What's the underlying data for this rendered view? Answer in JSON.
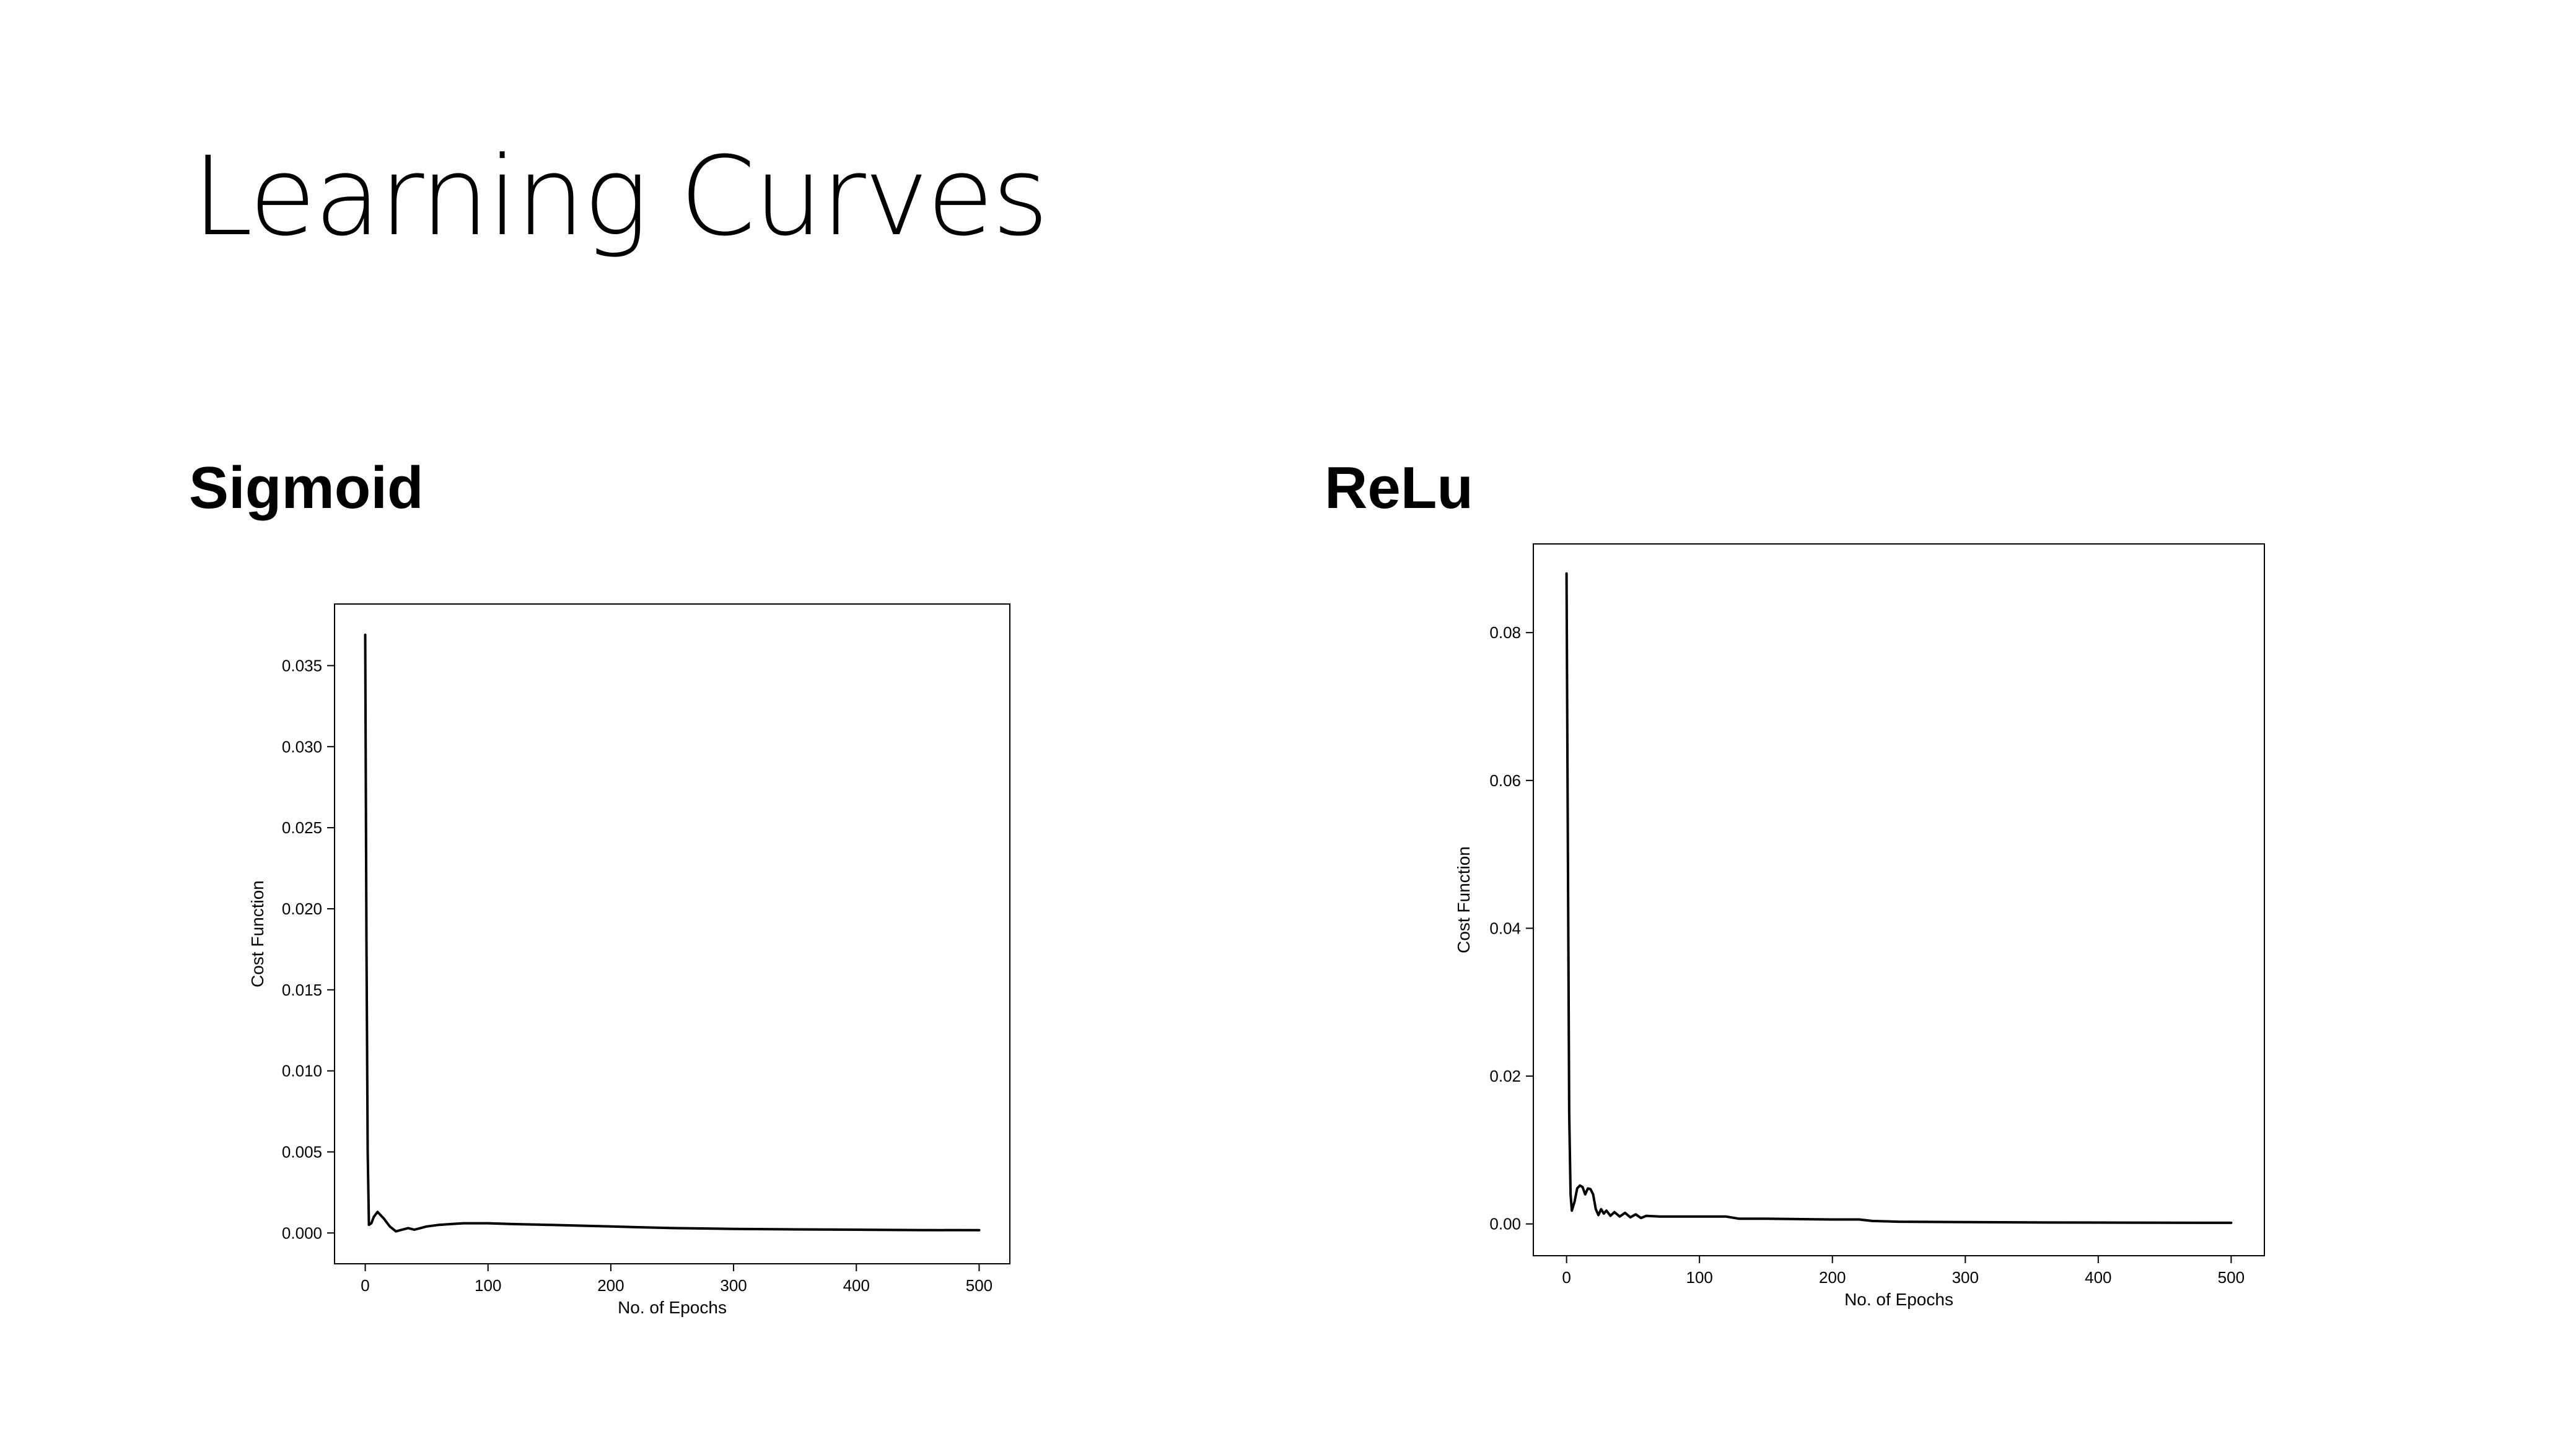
{
  "slide": {
    "title": "Learning Curves"
  },
  "chart_data": [
    {
      "heading": "Sigmoid",
      "type": "line",
      "xlabel": "No. of Epochs",
      "ylabel": "Cost Function",
      "xlim": [
        -25,
        525
      ],
      "ylim": [
        -0.0019,
        0.0388
      ],
      "xticks": [
        0,
        100,
        200,
        300,
        400,
        500
      ],
      "xtick_labels": [
        "0",
        "100",
        "200",
        "300",
        "400",
        "500"
      ],
      "yticks": [
        0.0,
        0.005,
        0.01,
        0.015,
        0.02,
        0.025,
        0.03,
        0.035
      ],
      "ytick_labels": [
        "0.000",
        "0.005",
        "0.010",
        "0.015",
        "0.020",
        "0.025",
        "0.030",
        "0.035"
      ],
      "grid": false,
      "legend": false,
      "series": [
        {
          "color": "#000000",
          "x": [
            0,
            1,
            2,
            3,
            5,
            7,
            10,
            15,
            20,
            25,
            30,
            35,
            40,
            45,
            50,
            60,
            70,
            80,
            90,
            100,
            120,
            150,
            200,
            250,
            300,
            350,
            400,
            450,
            500
          ],
          "y": [
            0.0369,
            0.018,
            0.005,
            0.0005,
            0.0006,
            0.001,
            0.0013,
            0.0009,
            0.0004,
            0.0001,
            0.0002,
            0.0003,
            0.0002,
            0.0003,
            0.0004,
            0.0005,
            0.00055,
            0.0006,
            0.0006,
            0.0006,
            0.00055,
            0.0005,
            0.0004,
            0.0003,
            0.00025,
            0.00022,
            0.0002,
            0.00018,
            0.00017
          ]
        }
      ]
    },
    {
      "heading": "ReLu",
      "type": "line",
      "xlabel": "No. of Epochs",
      "ylabel": "Cost Function",
      "xlim": [
        -25,
        525
      ],
      "ylim": [
        -0.0043,
        0.092
      ],
      "xticks": [
        0,
        100,
        200,
        300,
        400,
        500
      ],
      "xtick_labels": [
        "0",
        "100",
        "200",
        "300",
        "400",
        "500"
      ],
      "yticks": [
        0.0,
        0.02,
        0.04,
        0.06,
        0.08
      ],
      "ytick_labels": [
        "0.00",
        "0.02",
        "0.04",
        "0.06",
        "0.08"
      ],
      "grid": false,
      "legend": false,
      "series": [
        {
          "color": "#000000",
          "x": [
            0,
            1,
            2,
            3,
            4,
            6,
            8,
            10,
            12,
            14,
            16,
            18,
            20,
            22,
            24,
            26,
            28,
            30,
            33,
            36,
            40,
            44,
            48,
            52,
            56,
            60,
            70,
            80,
            100,
            120,
            130,
            150,
            200,
            220,
            230,
            250,
            300,
            350,
            400,
            450,
            500
          ],
          "y": [
            0.088,
            0.05,
            0.015,
            0.004,
            0.0018,
            0.003,
            0.0048,
            0.0052,
            0.005,
            0.004,
            0.0048,
            0.0047,
            0.004,
            0.002,
            0.0012,
            0.002,
            0.0014,
            0.0018,
            0.0011,
            0.0016,
            0.001,
            0.0015,
            0.0009,
            0.0013,
            0.0008,
            0.0011,
            0.001,
            0.001,
            0.001,
            0.001,
            0.0007,
            0.0007,
            0.0006,
            0.0006,
            0.0004,
            0.0003,
            0.00025,
            0.0002,
            0.00018,
            0.00016,
            0.00015
          ]
        }
      ]
    }
  ]
}
